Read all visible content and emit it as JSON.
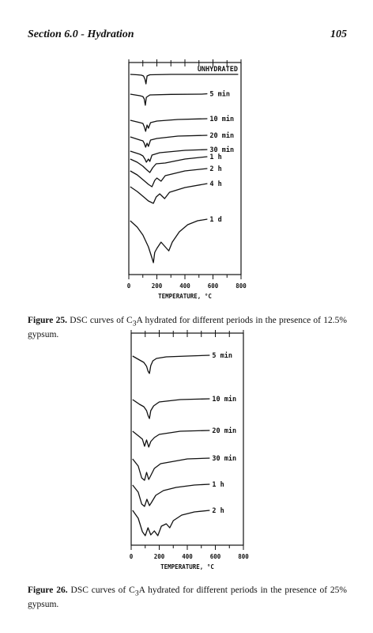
{
  "header": {
    "section": "Section 6.0 - Hydration",
    "page_number": "105"
  },
  "figures": [
    {
      "caption": {
        "label": "Figure 25.",
        "text_before": " DSC curves of C",
        "subscript": "3",
        "text_after": "A hydrated for different periods in the presence of 12.5% gypsum."
      },
      "chart_data": {
        "type": "line",
        "xlabel": "TEMPERATURE, °C",
        "xlim": [
          0,
          800
        ],
        "x_ticks": [
          "0",
          "200",
          "400",
          "600",
          "800"
        ],
        "series": [
          {
            "name": "UNHYDRATED",
            "points": [
              [
                10,
                0
              ],
              [
                60,
                0.5
              ],
              [
                90,
                1
              ],
              [
                105,
                2
              ],
              [
                115,
                6
              ],
              [
                122,
                12
              ],
              [
                130,
                2
              ],
              [
                150,
                0.5
              ],
              [
                300,
                0
              ],
              [
                780,
                0
              ]
            ]
          },
          {
            "name": "5 min",
            "points": [
              [
                10,
                0
              ],
              [
                80,
                2
              ],
              [
                100,
                3
              ],
              [
                110,
                6
              ],
              [
                118,
                14
              ],
              [
                125,
                4
              ],
              [
                150,
                1
              ],
              [
                300,
                0.3
              ],
              [
                520,
                0
              ],
              [
                560,
                -0.5
              ]
            ]
          },
          {
            "name": "10 min",
            "points": [
              [
                10,
                0
              ],
              [
                80,
                3
              ],
              [
                100,
                4
              ],
              [
                110,
                8
              ],
              [
                120,
                14
              ],
              [
                130,
                6
              ],
              [
                140,
                10
              ],
              [
                155,
                3
              ],
              [
                200,
                1
              ],
              [
                350,
                -1
              ],
              [
                560,
                -2
              ]
            ]
          },
          {
            "name": "20 min",
            "points": [
              [
                10,
                0
              ],
              [
                80,
                4
              ],
              [
                100,
                5
              ],
              [
                110,
                8
              ],
              [
                120,
                13
              ],
              [
                130,
                8
              ],
              [
                140,
                12
              ],
              [
                155,
                4
              ],
              [
                200,
                2
              ],
              [
                350,
                -1
              ],
              [
                560,
                -2
              ]
            ]
          },
          {
            "name": "30 min",
            "points": [
              [
                10,
                0
              ],
              [
                80,
                4
              ],
              [
                100,
                6
              ],
              [
                115,
                10
              ],
              [
                125,
                14
              ],
              [
                140,
                10
              ],
              [
                150,
                13
              ],
              [
                165,
                5
              ],
              [
                220,
                2
              ],
              [
                400,
                -1
              ],
              [
                560,
                -2
              ]
            ]
          },
          {
            "name": "1 h",
            "points": [
              [
                10,
                0
              ],
              [
                60,
                4
              ],
              [
                100,
                9
              ],
              [
                130,
                14
              ],
              [
                150,
                17
              ],
              [
                170,
                11
              ],
              [
                195,
                6
              ],
              [
                260,
                5
              ],
              [
                400,
                0
              ],
              [
                560,
                -3
              ]
            ]
          },
          {
            "name": "2 h",
            "points": [
              [
                10,
                0
              ],
              [
                60,
                5
              ],
              [
                100,
                11
              ],
              [
                140,
                17
              ],
              [
                165,
                20
              ],
              [
                185,
                12
              ],
              [
                200,
                9
              ],
              [
                230,
                13
              ],
              [
                260,
                6
              ],
              [
                400,
                0
              ],
              [
                560,
                -3
              ]
            ]
          },
          {
            "name": "4 h",
            "points": [
              [
                10,
                0
              ],
              [
                60,
                6
              ],
              [
                100,
                12
              ],
              [
                140,
                18
              ],
              [
                175,
                21
              ],
              [
                195,
                13
              ],
              [
                220,
                9
              ],
              [
                255,
                15
              ],
              [
                290,
                7
              ],
              [
                400,
                1
              ],
              [
                560,
                -4
              ]
            ]
          },
          {
            "name": "1 d",
            "points": [
              [
                10,
                0
              ],
              [
                60,
                8
              ],
              [
                100,
                18
              ],
              [
                140,
                33
              ],
              [
                165,
                47
              ],
              [
                175,
                53
              ],
              [
                185,
                40
              ],
              [
                200,
                35
              ],
              [
                230,
                27
              ],
              [
                260,
                33
              ],
              [
                285,
                38
              ],
              [
                310,
                27
              ],
              [
                360,
                14
              ],
              [
                420,
                5
              ],
              [
                490,
                0
              ],
              [
                560,
                -2
              ]
            ]
          }
        ]
      }
    },
    {
      "caption": {
        "label": "Figure 26.",
        "text_before": " DSC curves of C",
        "subscript": "3",
        "text_after": "A hydrated for different periods in the presence of 25% gypsum."
      },
      "chart_data": {
        "type": "line",
        "xlabel": "TEMPERATURE, °C",
        "xlim": [
          0,
          800
        ],
        "x_ticks": [
          "0",
          "200",
          "400",
          "600",
          "800"
        ],
        "series": [
          {
            "name": "5 min",
            "points": [
              [
                10,
                0
              ],
              [
                60,
                5
              ],
              [
                90,
                8
              ],
              [
                110,
                13
              ],
              [
                120,
                19
              ],
              [
                130,
                22
              ],
              [
                140,
                12
              ],
              [
                155,
                6
              ],
              [
                180,
                3
              ],
              [
                250,
                1
              ],
              [
                400,
                0
              ],
              [
                560,
                -1
              ]
            ]
          },
          {
            "name": "10 min",
            "points": [
              [
                10,
                0
              ],
              [
                60,
                6
              ],
              [
                90,
                9
              ],
              [
                110,
                14
              ],
              [
                120,
                20
              ],
              [
                130,
                24
              ],
              [
                140,
                14
              ],
              [
                160,
                8
              ],
              [
                200,
                3
              ],
              [
                350,
                0
              ],
              [
                560,
                -1
              ]
            ]
          },
          {
            "name": "20 min",
            "points": [
              [
                10,
                0
              ],
              [
                60,
                7
              ],
              [
                80,
                10
              ],
              [
                95,
                19
              ],
              [
                110,
                11
              ],
              [
                125,
                20
              ],
              [
                140,
                13
              ],
              [
                165,
                8
              ],
              [
                200,
                4
              ],
              [
                350,
                0
              ],
              [
                560,
                -1
              ]
            ]
          },
          {
            "name": "30 min",
            "points": [
              [
                10,
                0
              ],
              [
                50,
                9
              ],
              [
                75,
                24
              ],
              [
                95,
                27
              ],
              [
                110,
                17
              ],
              [
                125,
                26
              ],
              [
                140,
                21
              ],
              [
                165,
                12
              ],
              [
                210,
                6
              ],
              [
                400,
                0
              ],
              [
                560,
                -1
              ]
            ]
          },
          {
            "name": "1 h",
            "points": [
              [
                10,
                0
              ],
              [
                50,
                9
              ],
              [
                75,
                24
              ],
              [
                95,
                27
              ],
              [
                112,
                18
              ],
              [
                130,
                26
              ],
              [
                145,
                22
              ],
              [
                175,
                13
              ],
              [
                230,
                7
              ],
              [
                320,
                3
              ],
              [
                450,
                0
              ],
              [
                560,
                -1
              ]
            ]
          },
          {
            "name": "2 h",
            "points": [
              [
                10,
                0
              ],
              [
                50,
                10
              ],
              [
                80,
                27
              ],
              [
                100,
                32
              ],
              [
                120,
                22
              ],
              [
                140,
                31
              ],
              [
                165,
                26
              ],
              [
                190,
                32
              ],
              [
                215,
                20
              ],
              [
                250,
                17
              ],
              [
                275,
                22
              ],
              [
                300,
                13
              ],
              [
                360,
                6
              ],
              [
                450,
                2
              ],
              [
                560,
                0
              ]
            ]
          }
        ]
      }
    }
  ]
}
